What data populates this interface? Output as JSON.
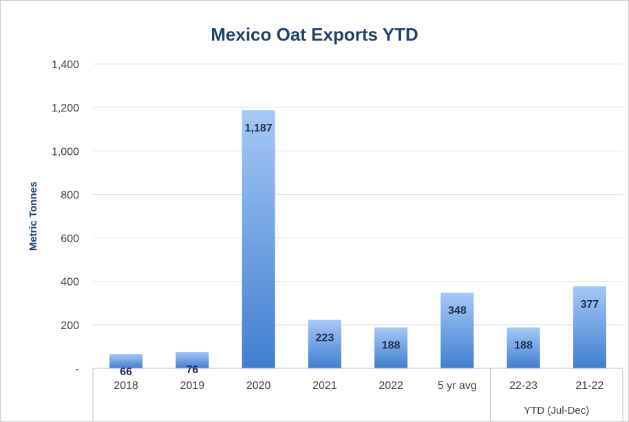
{
  "chart_data": {
    "type": "bar",
    "title": "Mexico Oat Exports YTD",
    "xlabel": "",
    "ylabel": "Metric Tonnes",
    "categories": [
      "2018",
      "2019",
      "2020",
      "2021",
      "2022",
      "5 yr avg",
      "22-23",
      "21-22"
    ],
    "values": [
      66,
      76,
      1187,
      223,
      188,
      348,
      188,
      377
    ],
    "data_labels": [
      "66",
      "76",
      "1,187",
      "223",
      "188",
      "348",
      "188",
      "377"
    ],
    "ylim": [
      0,
      1400
    ],
    "yticks": [
      {
        "value": 0,
        "label": "-"
      },
      {
        "value": 200,
        "label": "200"
      },
      {
        "value": 400,
        "label": "400"
      },
      {
        "value": 600,
        "label": "600"
      },
      {
        "value": 800,
        "label": "800"
      },
      {
        "value": 1000,
        "label": "1,000"
      },
      {
        "value": 1200,
        "label": "1,200"
      },
      {
        "value": 1400,
        "label": "1,400"
      }
    ],
    "group_label": "YTD (Jul-Dec)",
    "group_categories": [
      "22-23",
      "21-22"
    ],
    "grid": true,
    "legend": "none",
    "bar_color_top": "#a6c8f7",
    "bar_color_bottom": "#3f7fd0"
  }
}
